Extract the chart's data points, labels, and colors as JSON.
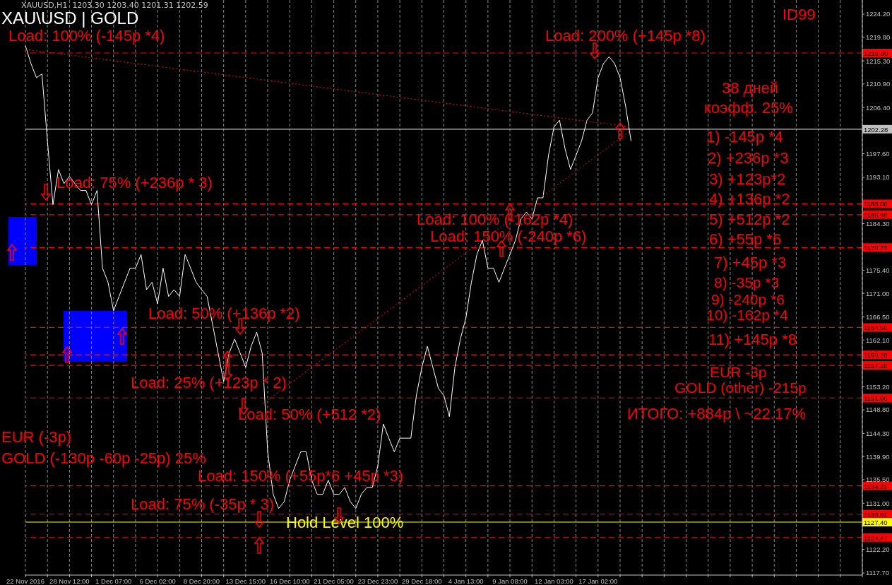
{
  "chart_data": {
    "type": "line",
    "title": "XAU\\USD | GOLD",
    "subtitle": "XAUUSD,H1  1203.30 1203.40 1201.31 1202.59",
    "categories": [
      "22 Nov 2016",
      null,
      null,
      null,
      null,
      null,
      null,
      null,
      "28 Nov 12:00",
      null,
      null,
      null,
      null,
      null,
      null,
      null,
      "1 Dec 07:00",
      null,
      null,
      null,
      null,
      null,
      null,
      null,
      "6 Dec 02:00",
      null,
      null,
      null,
      null,
      null,
      null,
      null,
      "8 Dec 20:00",
      null,
      null,
      null,
      null,
      null,
      null,
      null,
      "13 Dec 15:00",
      null,
      null,
      null,
      null,
      null,
      null,
      null,
      "16 Dec 10:00",
      null,
      null,
      null,
      null,
      null,
      null,
      null,
      "21 Dec 05:00",
      null,
      null,
      null,
      null,
      null,
      null,
      null,
      "23 Dec 23:00",
      null,
      null,
      null,
      null,
      null,
      null,
      null,
      "29 Dec 18:00",
      null,
      null,
      null,
      null,
      null,
      null,
      null,
      "4 Jan 13:00",
      null,
      null,
      null,
      null,
      null,
      null,
      null,
      "9 Jan 08:00",
      null,
      null,
      null,
      null,
      null,
      null,
      null,
      "12 Jan 03:00",
      null,
      null,
      null,
      null,
      null,
      null,
      null,
      "17 Jan 02:00",
      null,
      null,
      null,
      null,
      null,
      null,
      null,
      null,
      null,
      null,
      null,
      null,
      null,
      null,
      null,
      null,
      null,
      null,
      null,
      null,
      null,
      null,
      null,
      null,
      null,
      null,
      null,
      null,
      null,
      null,
      null,
      null,
      null,
      null,
      null,
      null,
      null,
      null,
      null,
      null,
      null,
      null,
      null,
      null,
      null,
      null,
      null,
      null
    ],
    "series": [
      {
        "color": "#ffffff",
        "values": [
          1218.2,
          1214.8,
          1212.1,
          1212.8,
          1200.0,
          1187.9,
          1194.6,
          1191.9,
          1193.3,
          1191.9,
          1190.6,
          1190.6,
          1187.9,
          1190.6,
          1175.8,
          1173.1,
          1167.7,
          1170.4,
          1173.1,
          1175.8,
          1175.8,
          1178.4,
          1171.7,
          1173.1,
          1169.0,
          1175.8,
          1170.4,
          1171.7,
          1170.4,
          1178.4,
          1175.8,
          1173.1,
          1171.7,
          1170.4,
          1165.0,
          1159.6,
          1154.2,
          1159.6,
          1162.3,
          1159.6,
          1156.9,
          1160.9,
          1163.6,
          1159.6,
          1140.8,
          1132.7,
          1130.0,
          1131.3,
          1135.4,
          1138.1,
          1140.8,
          1140.8,
          1135.4,
          1132.7,
          1132.7,
          1135.4,
          1132.7,
          1132.7,
          1134.0,
          1131.3,
          1130.0,
          1132.7,
          1134.0,
          1134.0,
          1138.1,
          1146.1,
          1143.4,
          1140.8,
          1143.4,
          1143.4,
          1143.4,
          1151.5,
          1156.9,
          1160.9,
          1156.9,
          1152.9,
          1151.5,
          1147.5,
          1156.9,
          1162.3,
          1166.3,
          1173.1,
          1178.4,
          1181.1,
          1175.8,
          1175.8,
          1173.1,
          1175.8,
          1178.4,
          1181.1,
          1185.2,
          1186.5,
          1185.2,
          1189.2,
          1189.2,
          1197.3,
          1202.7,
          1204.0,
          1198.6,
          1194.6,
          1197.3,
          1200.0,
          1204.0,
          1205.4,
          1212.1,
          1214.8,
          1216.1,
          1214.8,
          1212.1,
          1206.7,
          1200.0,
          null,
          null,
          null,
          null,
          null,
          null,
          null,
          null,
          null,
          null,
          null,
          null,
          null,
          null,
          null,
          null,
          null,
          null,
          null,
          null,
          null,
          null,
          null,
          null,
          null,
          null,
          null,
          null,
          null,
          null,
          null,
          null,
          null,
          null,
          null,
          null,
          null,
          null,
          null,
          null,
          null,
          null
        ]
      },
      {
        "type": "line",
        "color": "#ff0000",
        "line_style": "dotted",
        "values": [
          1217.5,
          null,
          null,
          null,
          null,
          null,
          null,
          null,
          null,
          null,
          null,
          null,
          null,
          null,
          null,
          null,
          null,
          null,
          null,
          null,
          null,
          null,
          null,
          null,
          null,
          null,
          null,
          null,
          null,
          null,
          null,
          null,
          null,
          null,
          null,
          null,
          null,
          null,
          null,
          null,
          null,
          null,
          null,
          null,
          null,
          null,
          null,
          null,
          null,
          null,
          null,
          null,
          null,
          null,
          null,
          null,
          null,
          null,
          null,
          null,
          null,
          null,
          null,
          null,
          null,
          null,
          null,
          null,
          null,
          null,
          null,
          null,
          null,
          null,
          null,
          null,
          null,
          null,
          null,
          null,
          null,
          null,
          null,
          null,
          null,
          null,
          null,
          null,
          null,
          null,
          null,
          null,
          null,
          null,
          null,
          null,
          null,
          null,
          null,
          null,
          null,
          null,
          null,
          null,
          null,
          null,
          null,
          null,
          null,
          null,
          1202.7,
          null,
          null,
          null,
          null,
          null,
          null,
          null,
          null,
          null,
          null,
          null,
          null,
          null,
          null,
          null,
          null,
          null,
          null,
          null,
          null,
          null,
          null,
          null,
          null,
          null,
          null,
          null,
          null,
          null,
          null,
          null,
          null,
          null,
          null,
          null,
          null,
          null,
          null,
          null,
          null,
          null,
          null
        ]
      },
      {
        "type": "line",
        "color": "#ff0000",
        "line_style": "dotted",
        "values": [
          null,
          null,
          null,
          null,
          null,
          null,
          null,
          null,
          null,
          null,
          null,
          null,
          null,
          null,
          null,
          null,
          null,
          null,
          null,
          null,
          null,
          null,
          null,
          null,
          null,
          null,
          null,
          null,
          null,
          null,
          null,
          null,
          null,
          null,
          null,
          null,
          null,
          null,
          null,
          null,
          null,
          null,
          null,
          1149.9,
          null,
          null,
          null,
          null,
          null,
          null,
          null,
          null,
          null,
          null,
          null,
          null,
          null,
          null,
          null,
          null,
          null,
          null,
          null,
          null,
          null,
          null,
          null,
          null,
          null,
          null,
          null,
          null,
          null,
          null,
          null,
          null,
          null,
          null,
          null,
          null,
          null,
          null,
          null,
          null,
          null,
          null,
          null,
          null,
          null,
          null,
          null,
          null,
          null,
          null,
          null,
          null,
          null,
          null,
          null,
          null,
          null,
          null,
          null,
          null,
          null,
          null,
          null,
          null,
          null,
          null,
          1202.1,
          null,
          null,
          null,
          null,
          null,
          null,
          null,
          null,
          null,
          null,
          null,
          null,
          null,
          null,
          null,
          null,
          null,
          null,
          null,
          null,
          null,
          null,
          null,
          null,
          null,
          null,
          null,
          null,
          null,
          null,
          null,
          null,
          null,
          null,
          null,
          null,
          null,
          null,
          null,
          null,
          null,
          null
        ]
      }
    ],
    "ylim": [
      1117.3,
      1226.9
    ],
    "yticks": [
      {
        "value": 1224.2,
        "label": "1224.20"
      },
      {
        "value": 1219.8,
        "label": "1219.80"
      },
      {
        "value": 1215.3,
        "label": "1215.30"
      },
      {
        "value": 1210.9,
        "label": "1210.90"
      },
      {
        "value": 1206.4,
        "label": "1206.40"
      },
      {
        "value": 1197.6,
        "label": "1197.60"
      },
      {
        "value": 1193.1,
        "label": "1193.10"
      },
      {
        "value": 1184.3,
        "label": "1184.30"
      },
      {
        "value": 1175.4,
        "label": "1175.40"
      },
      {
        "value": 1171.0,
        "label": "1171.00"
      },
      {
        "value": 1166.5,
        "label": "1166.50"
      },
      {
        "value": 1162.1,
        "label": "1162.10"
      },
      {
        "value": 1153.2,
        "label": "1153.20"
      },
      {
        "value": 1148.8,
        "label": "1148.80"
      },
      {
        "value": 1144.3,
        "label": "1144.30"
      },
      {
        "value": 1139.9,
        "label": "1139.90"
      },
      {
        "value": 1135.5,
        "label": "1135.50"
      },
      {
        "value": 1131.0,
        "label": "1131.00"
      },
      {
        "value": 1122.2,
        "label": "1122.20"
      },
      {
        "value": 1117.7,
        "label": "1117.70"
      }
    ],
    "grid": "x",
    "ref_lines": [
      {
        "axis": "y",
        "value": 1216.8,
        "label": "1216.80",
        "color": "#ff0000",
        "line_style": "dashed"
      },
      {
        "axis": "y",
        "value": 1202.28,
        "label": "1202.28",
        "color": "#c0c0c0",
        "line_style": "solid"
      },
      {
        "axis": "y",
        "value": 1188.06,
        "label": "1188.06",
        "color": "#ff0000",
        "line_style": "dashed"
      },
      {
        "axis": "y",
        "value": 1185.99,
        "label": "1185.99",
        "color": "#ff0000",
        "line_style": "dashed"
      },
      {
        "axis": "y",
        "value": 1179.73,
        "label": "1179.73",
        "color": "#ff0000",
        "line_style": "dashed"
      },
      {
        "axis": "y",
        "value": 1164.5,
        "label": "1164.50",
        "color": "#ff0000",
        "line_style": "dashed"
      },
      {
        "axis": "y",
        "value": 1159.28,
        "label": "1159.28",
        "color": "#ff0000",
        "line_style": "dashed"
      },
      {
        "axis": "y",
        "value": 1157.28,
        "label": "1157.28",
        "color": "#ff0000",
        "line_style": "dashed"
      },
      {
        "axis": "y",
        "value": 1151.06,
        "label": "1151.06",
        "color": "#ff0000",
        "line_style": "dashed"
      },
      {
        "axis": "y",
        "value": 1134.31,
        "label": "1134.31",
        "color": "#ff0000",
        "line_style": "dashed"
      },
      {
        "axis": "y",
        "value": 1128.91,
        "label": "1128.91",
        "color": "#ff0000",
        "line_style": "dashed"
      },
      {
        "axis": "y",
        "value": 1127.4,
        "label": "1127.40",
        "color": "#ffff00",
        "line_style": "solid"
      },
      {
        "axis": "y",
        "value": 1124.47,
        "label": "1124.47",
        "color": "#ff0000",
        "line_style": "dashed"
      }
    ],
    "annotations": [
      "ID99",
      "Load: 100% (-145p *4)",
      "Load: 200% (+145p *8)",
      "38 дней",
      "коэфф. 25%",
      "1) -145p *4",
      "2) +236p *3",
      "3) +123p*2",
      "4) +136p *2",
      "5) +512p *2",
      "6) +55p *6",
      "7) +45p *3",
      "8) -35p *3",
      "9) -240p *6",
      "10) -162p *4",
      "11) +145p *8",
      "EUR -3p",
      "GOLD (other) -215p",
      "ИТОГО: +884p \\ ~22.17%",
      "Load: 75% (+236p * 3)",
      "Load: 100% (-162p *4)",
      "Load: 150% (-240p *6)",
      "Load: 50% (+136p *2)",
      "Load: 25% (+123p * 2)",
      "Load: 50% (+512 *2)",
      "EUR (-3p)",
      "GOLD (-130p -60p -25p) 25%",
      "Load: 150% (+55p*6 +45p *3)",
      "Load: 75% (-35p * 3)",
      "Hold Level 100%"
    ]
  }
}
